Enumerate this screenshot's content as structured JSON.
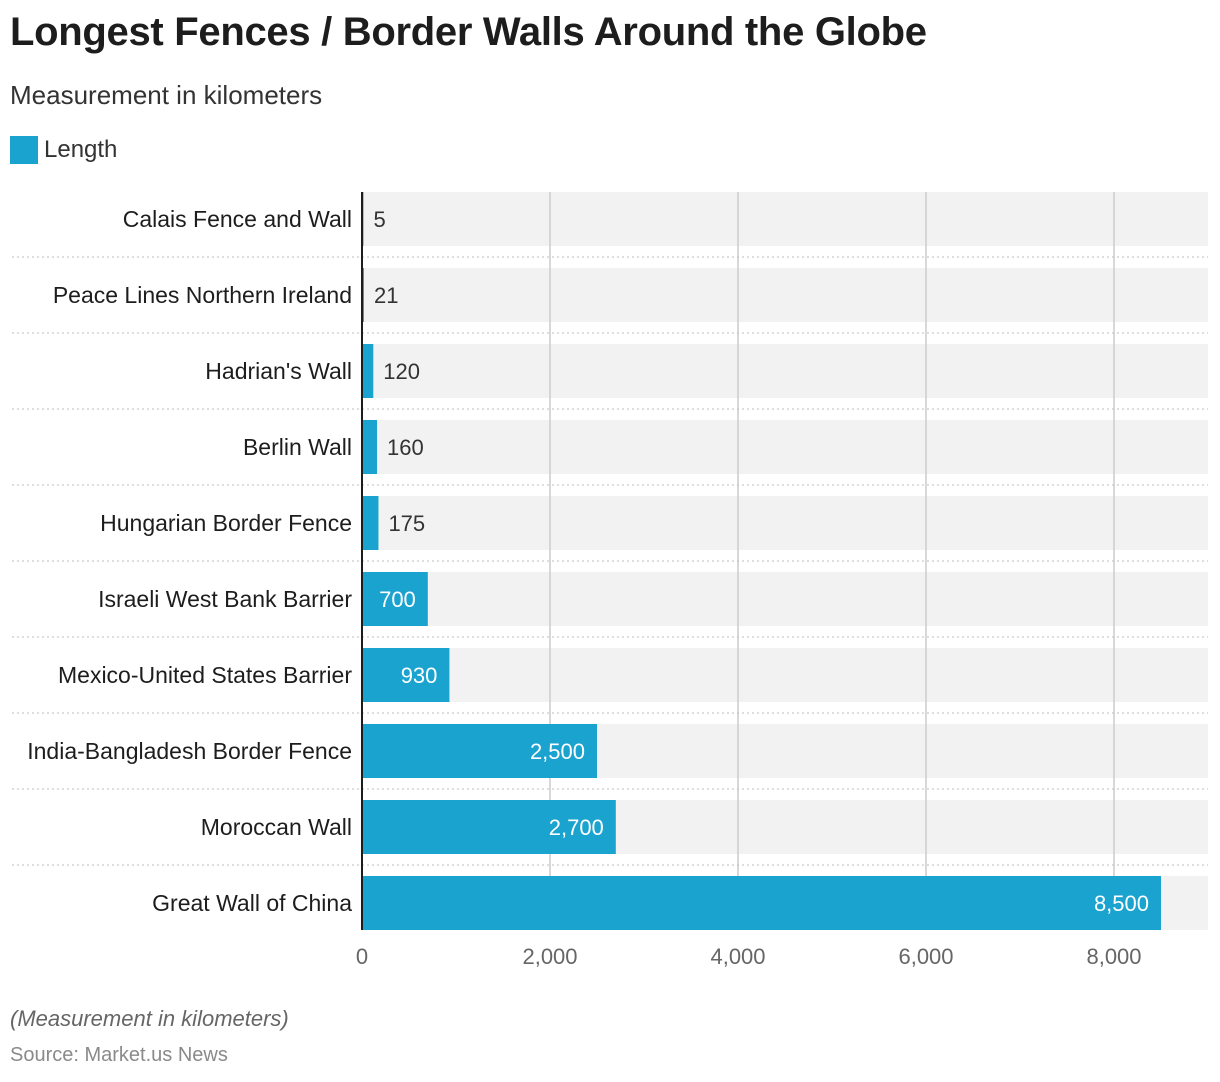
{
  "header": {
    "title": "Longest Fences / Border Walls Around the Globe",
    "subtitle": "Measurement in kilometers"
  },
  "legend": {
    "label": "Length",
    "color": "#1aa3cf"
  },
  "footer": {
    "note": "(Measurement in kilometers)",
    "source": "Source: Market.us News"
  },
  "chart_data": {
    "type": "bar",
    "orientation": "horizontal",
    "title": "Longest Fences / Border Walls Around the Globe",
    "subtitle": "Measurement in kilometers",
    "categories": [
      "Calais Fence and Wall",
      "Peace Lines Northern Ireland",
      "Hadrian's Wall",
      "Berlin Wall",
      "Hungarian Border Fence",
      "Israeli West Bank Barrier",
      "Mexico-United States Barrier",
      "India-Bangladesh Border Fence",
      "Moroccan Wall",
      "Great Wall of China"
    ],
    "series": [
      {
        "name": "Length",
        "values": [
          5,
          21,
          120,
          160,
          175,
          700,
          930,
          2500,
          2700,
          8500
        ],
        "color": "#1aa3cf"
      }
    ],
    "value_labels": [
      "5",
      "21",
      "120",
      "160",
      "175",
      "700",
      "930",
      "2,500",
      "2,700",
      "8,500"
    ],
    "xlim": [
      0,
      9000
    ],
    "xticks": [
      0,
      2000,
      4000,
      6000,
      8000
    ],
    "xtick_labels": [
      "0",
      "2,000",
      "4,000",
      "6,000",
      "8,000"
    ],
    "grid": true,
    "legend_position": "top-left"
  }
}
